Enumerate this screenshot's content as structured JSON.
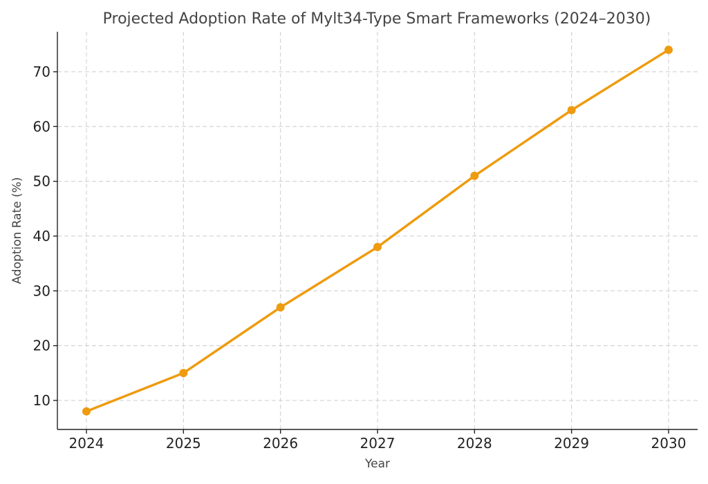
{
  "colors": {
    "line": "#ee9b0f",
    "grid": "#cccccc",
    "axis": "#222222"
  },
  "chart_data": {
    "type": "line",
    "title": "Projected Adoption Rate of Mylt34-Type Smart Frameworks (2024–2030)",
    "xlabel": "Year",
    "ylabel": "Adoption Rate (%)",
    "x": [
      "2024",
      "2025",
      "2026",
      "2027",
      "2028",
      "2029",
      "2030"
    ],
    "series": [
      {
        "values": [
          8,
          15,
          27,
          38,
          51,
          63,
          74
        ]
      }
    ],
    "y_ticks": [
      "10",
      "20",
      "30",
      "40",
      "50",
      "60",
      "70"
    ],
    "ylim": [
      4.7,
      77.3
    ],
    "grid": true,
    "markers": true
  }
}
